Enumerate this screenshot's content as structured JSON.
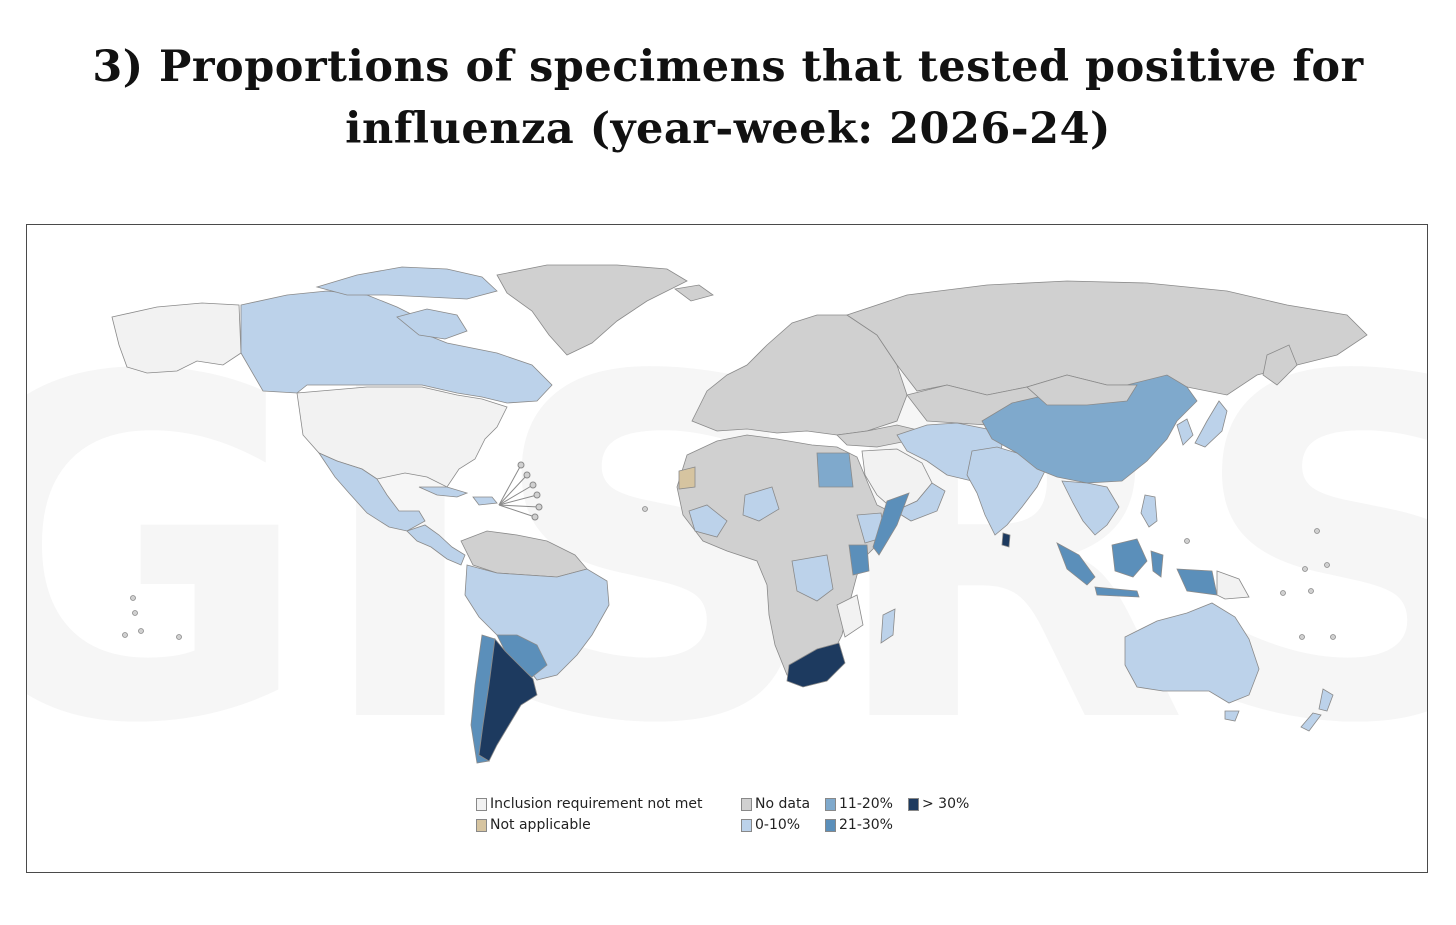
{
  "title": {
    "line1": "3) Proportions of specimens that tested positive for",
    "line2": "influenza (year-week: 2026-24)"
  },
  "map": {
    "watermark": "GISRS",
    "legend": [
      {
        "key": "not_met",
        "label": "Inclusion requirement not met",
        "color": "#f2f2f2"
      },
      {
        "key": "no_data",
        "label": "No data",
        "color": "#d0d0d0"
      },
      {
        "key": "p11_20",
        "label": "11-20%",
        "color": "#7fa9cc"
      },
      {
        "key": "p30plus",
        "label": "> 30%",
        "color": "#1d3a5f"
      },
      {
        "key": "not_applicable",
        "label": "Not applicable",
        "color": "#d6c4a0"
      },
      {
        "key": "p0_10",
        "label": "0-10%",
        "color": "#bcd2ea"
      },
      {
        "key": "p21_30",
        "label": "21-30%",
        "color": "#5b8fba"
      }
    ],
    "colors": {
      "not_met": "#f2f2f2",
      "no_data": "#d0d0d0",
      "not_applicable": "#d6c4a0",
      "p0_10": "#bcd2ea",
      "p11_20": "#7fa9cc",
      "p21_30": "#5b8fba",
      "p30plus": "#1d3a5f"
    }
  }
}
